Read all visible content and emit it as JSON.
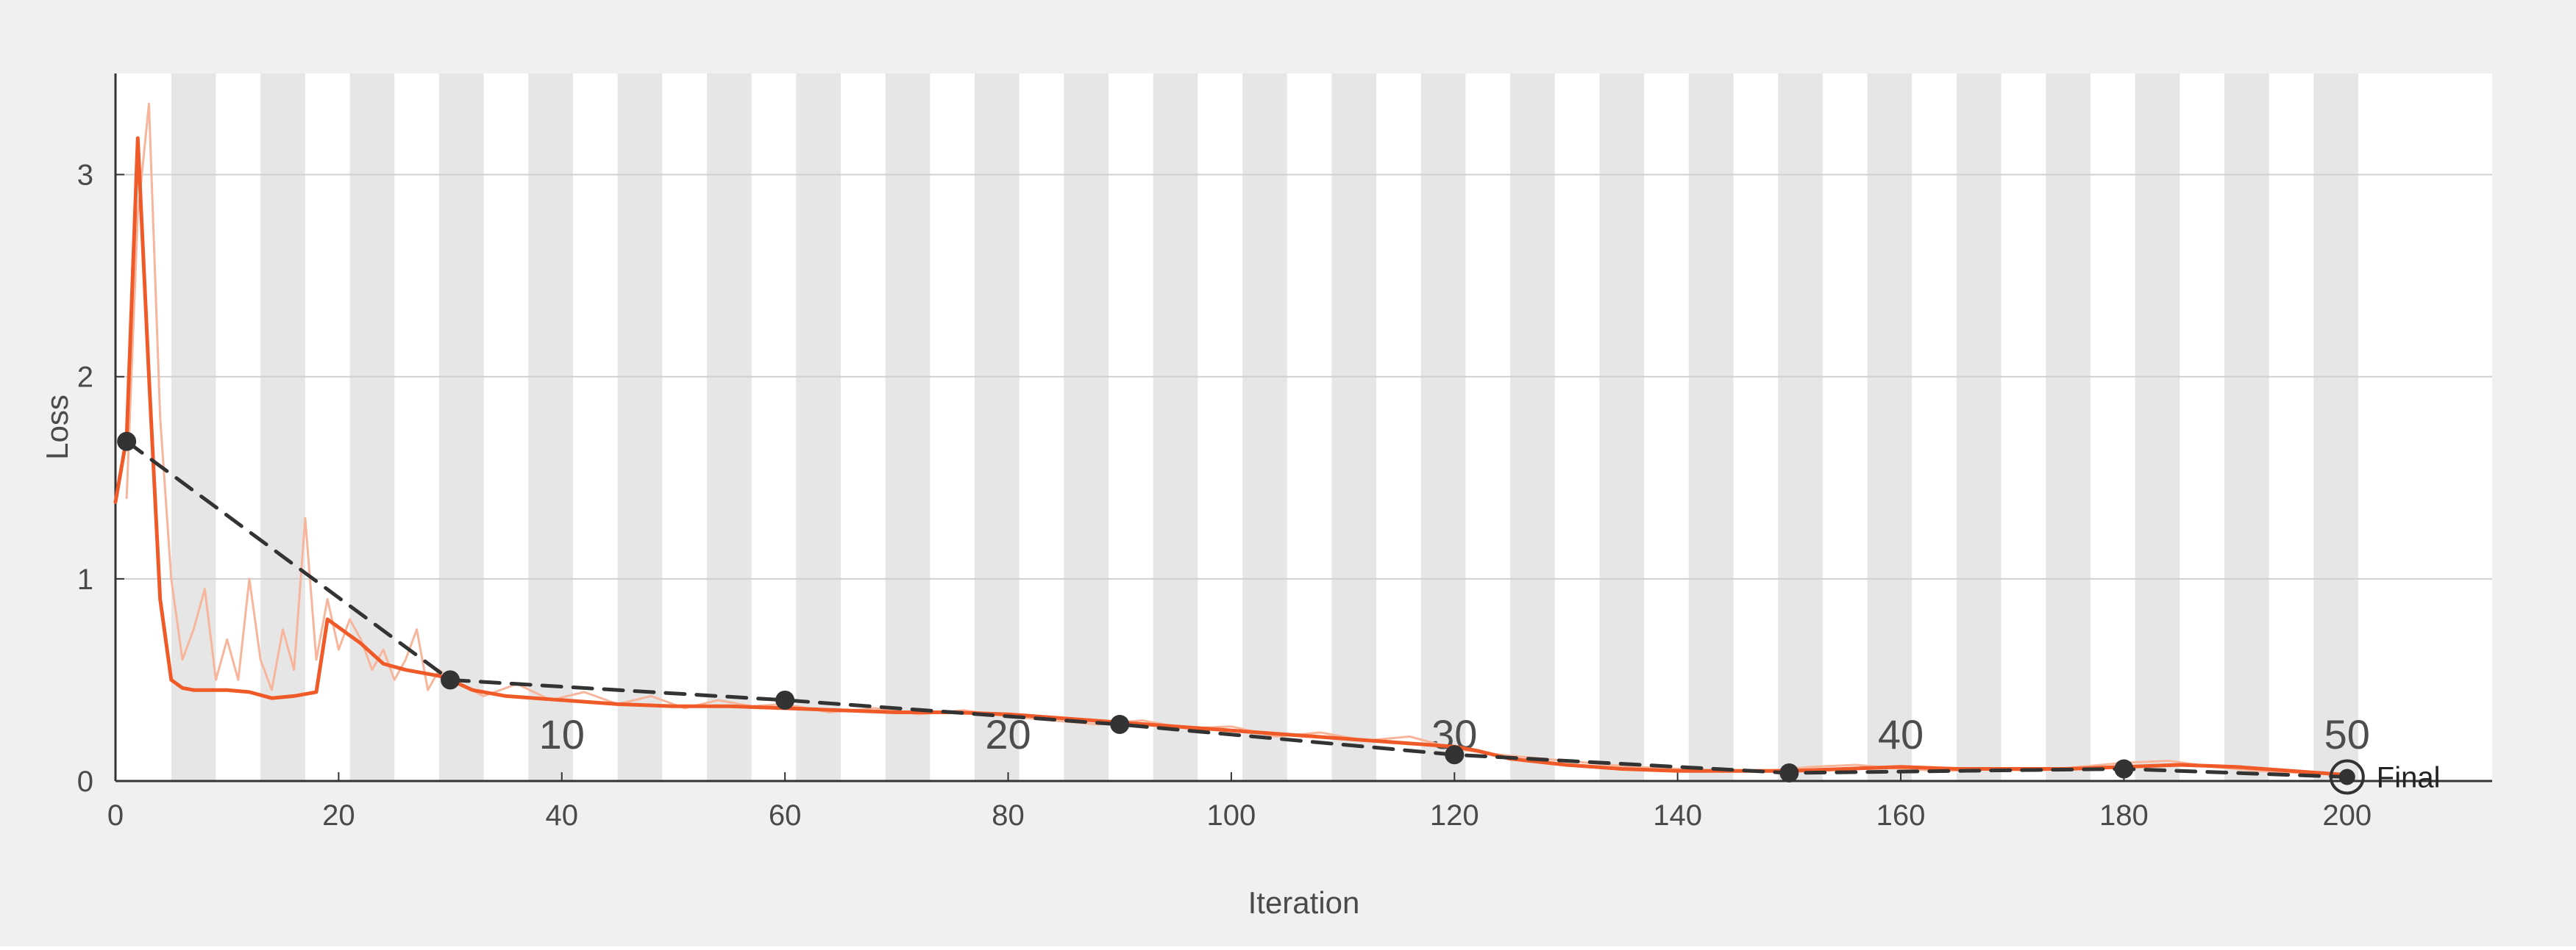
{
  "chart_data": {
    "type": "line",
    "title": "",
    "xlabel": "Iteration",
    "ylabel": "Loss",
    "xlim": [
      0,
      213
    ],
    "ylim": [
      0,
      3.5
    ],
    "x_ticks": [
      0,
      20,
      40,
      60,
      80,
      100,
      120,
      140,
      160,
      180,
      200
    ],
    "y_ticks": [
      0,
      1,
      2,
      3
    ],
    "grid": "horizontal",
    "background_colors": {
      "outer": "#f0f0f0",
      "plot": "#ffffff",
      "epoch_band": "#e6e6e6"
    },
    "epoch_bands": {
      "iterations_per_epoch": 4,
      "shaded_epochs": "even",
      "last_iteration": 200
    },
    "epoch_labels": [
      {
        "label": "10",
        "x": 40
      },
      {
        "label": "20",
        "x": 80
      },
      {
        "label": "30",
        "x": 120
      },
      {
        "label": "40",
        "x": 160
      },
      {
        "label": "50",
        "x": 200
      }
    ],
    "series": [
      {
        "role": "raw",
        "color": "#f7b69c",
        "x": [
          1,
          2,
          3,
          4,
          5,
          6,
          7,
          8,
          9,
          10,
          11,
          12,
          13,
          14,
          15,
          16,
          17,
          18,
          19,
          20,
          21,
          22,
          23,
          24,
          25,
          26,
          27,
          28,
          29,
          30,
          33,
          36,
          39,
          42,
          45,
          48,
          51,
          54,
          57,
          60,
          64,
          68,
          72,
          76,
          80,
          84,
          88,
          92,
          96,
          100,
          104,
          108,
          112,
          116,
          120,
          124,
          128,
          132,
          136,
          140,
          144,
          148,
          152,
          156,
          160,
          164,
          168,
          172,
          176,
          180,
          184,
          188,
          192,
          196,
          200
        ],
        "y": [
          1.4,
          2.8,
          3.35,
          1.8,
          1.0,
          0.6,
          0.75,
          0.95,
          0.5,
          0.7,
          0.5,
          1.0,
          0.6,
          0.45,
          0.75,
          0.55,
          1.3,
          0.6,
          0.9,
          0.65,
          0.8,
          0.7,
          0.55,
          0.65,
          0.5,
          0.6,
          0.75,
          0.45,
          0.55,
          0.5,
          0.42,
          0.48,
          0.4,
          0.44,
          0.38,
          0.42,
          0.36,
          0.4,
          0.37,
          0.38,
          0.34,
          0.36,
          0.33,
          0.35,
          0.32,
          0.3,
          0.28,
          0.3,
          0.26,
          0.27,
          0.22,
          0.24,
          0.2,
          0.22,
          0.16,
          0.13,
          0.11,
          0.09,
          0.07,
          0.06,
          0.05,
          0.05,
          0.07,
          0.08,
          0.06,
          0.05,
          0.06,
          0.05,
          0.07,
          0.09,
          0.1,
          0.07,
          0.05,
          0.04,
          0.03
        ]
      },
      {
        "role": "smoothed",
        "color": "#f05a28",
        "x": [
          0,
          1,
          2,
          3,
          4,
          5,
          6,
          7,
          8,
          10,
          12,
          14,
          16,
          18,
          19,
          20,
          22,
          24,
          26,
          28,
          29,
          30,
          32,
          35,
          40,
          45,
          50,
          55,
          60,
          65,
          70,
          75,
          80,
          85,
          90,
          95,
          100,
          105,
          110,
          115,
          120,
          122,
          125,
          130,
          135,
          140,
          145,
          150,
          155,
          160,
          165,
          170,
          175,
          180,
          185,
          190,
          195,
          200
        ],
        "y": [
          1.38,
          1.7,
          3.18,
          2.0,
          0.9,
          0.5,
          0.46,
          0.45,
          0.45,
          0.45,
          0.44,
          0.41,
          0.42,
          0.44,
          0.8,
          0.76,
          0.68,
          0.58,
          0.55,
          0.53,
          0.52,
          0.5,
          0.45,
          0.42,
          0.4,
          0.38,
          0.37,
          0.37,
          0.36,
          0.35,
          0.34,
          0.34,
          0.33,
          0.31,
          0.29,
          0.27,
          0.25,
          0.23,
          0.21,
          0.19,
          0.17,
          0.15,
          0.11,
          0.08,
          0.06,
          0.05,
          0.05,
          0.05,
          0.06,
          0.07,
          0.06,
          0.06,
          0.06,
          0.07,
          0.08,
          0.07,
          0.05,
          0.03
        ]
      },
      {
        "role": "validation",
        "color": "#333333",
        "style": "dashed",
        "x": [
          1,
          30,
          60,
          90,
          120,
          150,
          180,
          200
        ],
        "y": [
          1.68,
          0.5,
          0.4,
          0.28,
          0.13,
          0.04,
          0.06,
          0.02
        ]
      }
    ],
    "final_point": {
      "x": 200,
      "y": 0.02,
      "label": "Final"
    }
  }
}
